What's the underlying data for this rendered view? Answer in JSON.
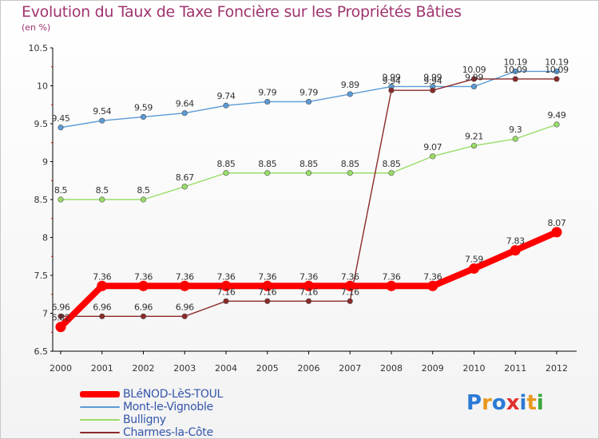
{
  "title": "Evolution du Taux de Taxe Foncière sur les Propriétés Bâties",
  "unit_label": "(en %)",
  "logo": {
    "text": "Proxiti",
    "colors": [
      "#2b7ad6",
      "#e89820",
      "#2b7ad6",
      "#e03030",
      "#2b7ad6",
      "#e89820",
      "#3aa83a"
    ]
  },
  "chart_data": {
    "type": "line",
    "title": "Evolution du Taux de Taxe Foncière sur les Propriétés Bâties",
    "ylabel": "(en %)",
    "xlabel": "",
    "x": [
      "2000",
      "2001",
      "2002",
      "2003",
      "2004",
      "2005",
      "2006",
      "2007",
      "2008",
      "2009",
      "2010",
      "2011",
      "2012"
    ],
    "ylim": [
      6.5,
      10.5
    ],
    "yticks": [
      "6.5",
      "7",
      "7.5",
      "8",
      "8.5",
      "9",
      "9.5",
      "10",
      "10.5"
    ],
    "series": [
      {
        "name": "BLéNOD-LèS-TOUL",
        "color": "#ff0000",
        "width": 8,
        "values": [
          6.82,
          7.36,
          7.36,
          7.36,
          7.36,
          7.36,
          7.36,
          7.36,
          7.36,
          7.36,
          7.59,
          7.83,
          8.07
        ],
        "labels": [
          "6.82",
          "7.36",
          "7.36",
          "7.36",
          "7.36",
          "7.36",
          "7.36",
          "7.36",
          "7.36",
          "7.36",
          "7.59",
          "7.83",
          "8.07"
        ]
      },
      {
        "name": "Mont-le-Vignoble",
        "color": "#5b9bd5",
        "width": 1.4,
        "values": [
          9.45,
          9.54,
          9.59,
          9.64,
          9.74,
          9.79,
          9.79,
          9.89,
          9.99,
          9.99,
          9.99,
          10.19,
          10.19
        ],
        "labels": [
          "9.45",
          "9.54",
          "9.59",
          "9.64",
          "9.74",
          "9.79",
          "9.79",
          "9.89",
          "9.99",
          "9.99",
          "9.99",
          "10.19",
          "10.19"
        ]
      },
      {
        "name": "Bulligny",
        "color": "#99dd66",
        "width": 1.4,
        "values": [
          8.5,
          8.5,
          8.5,
          8.67,
          8.85,
          8.85,
          8.85,
          8.85,
          8.85,
          9.07,
          9.21,
          9.3,
          9.49
        ],
        "labels": [
          "8.5",
          "8.5",
          "8.5",
          "8.67",
          "8.85",
          "8.85",
          "8.85",
          "8.85",
          "8.85",
          "9.07",
          "9.21",
          "9.3",
          "9.49"
        ]
      },
      {
        "name": "Charmes-la-Côte",
        "color": "#8b2a2a",
        "width": 1.4,
        "values": [
          6.96,
          6.96,
          6.96,
          6.96,
          7.16,
          7.16,
          7.16,
          7.16,
          9.94,
          9.94,
          10.09,
          10.09,
          10.09
        ],
        "labels": [
          "6.96",
          "6.96",
          "6.96",
          "6.96",
          "7.16",
          "7.16",
          "7.16",
          "7.16",
          "9.94",
          "9.94",
          "10.09",
          "10.09",
          "10.09"
        ]
      }
    ],
    "grid": false,
    "legend_position": "bottom-left"
  }
}
